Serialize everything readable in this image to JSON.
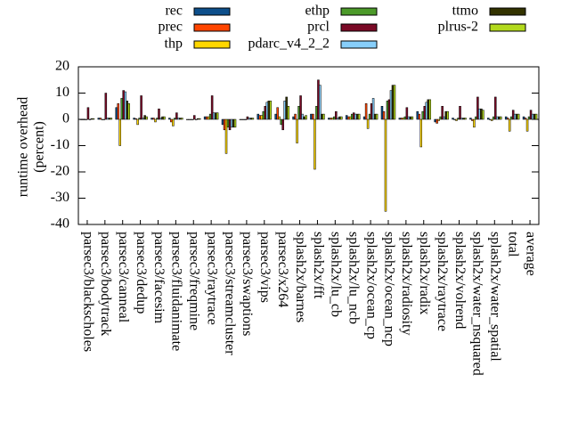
{
  "chart_data": {
    "type": "bar",
    "ylabel": [
      "runtime overhead",
      "(percent)"
    ],
    "categories": [
      "parsec3/blackscholes",
      "parsec3/bodytrack",
      "parsec3/canneal",
      "parsec3/dedup",
      "parsec3/facesim",
      "parsec3/fluidanimate",
      "parsec3/freqmine",
      "parsec3/raytrace",
      "parsec3/streamcluster",
      "parsec3/swaptions",
      "parsec3/vips",
      "parsec3/x264",
      "splash2x/barnes",
      "splash2x/fft",
      "splash2x/lu_cb",
      "splash2x/lu_ncb",
      "splash2x/ocean_cp",
      "splash2x/ocean_ncp",
      "splash2x/radiosity",
      "splash2x/radix",
      "splash2x/raytrace",
      "splash2x/volrend",
      "splash2x/water_nsquared",
      "splash2x/water_spatial",
      "total",
      "average"
    ],
    "series": [
      {
        "name": "rec",
        "color": "#0d4f8b",
        "values": [
          0,
          0.5,
          4.5,
          0.5,
          0.5,
          0.5,
          0,
          1,
          -2,
          0,
          2,
          2,
          1,
          2,
          0.5,
          1.5,
          1,
          5,
          0.5,
          3,
          -1,
          0.5,
          0.5,
          0.5,
          1,
          1
        ]
      },
      {
        "name": "prec",
        "color": "#ff4500",
        "values": [
          0,
          0.5,
          6,
          0.3,
          0.5,
          -1,
          0,
          1,
          -4,
          0,
          1.5,
          4.5,
          2,
          2,
          0.5,
          1,
          6,
          3,
          0.5,
          2,
          -1.5,
          0,
          -0.5,
          0,
          0.5,
          0.5
        ]
      },
      {
        "name": "thp",
        "color": "#ffd700",
        "values": [
          0,
          0,
          -10,
          -2,
          -1,
          -2.5,
          0,
          1,
          -13,
          0,
          1.5,
          1,
          -9,
          -19,
          0.5,
          1,
          -3.5,
          -35,
          0.5,
          -10.5,
          -0.5,
          -0.5,
          -3,
          -0.5,
          -4.5,
          -4.5
        ]
      },
      {
        "name": "ethp",
        "color": "#4c9a2a",
        "values": [
          0,
          0,
          8,
          0.5,
          0.5,
          0.5,
          0,
          2,
          -3,
          0,
          3,
          -2,
          5,
          5,
          1,
          2,
          2,
          7,
          1,
          3,
          1,
          0.5,
          1,
          1,
          1,
          1
        ]
      },
      {
        "name": "prcl",
        "color": "#7a0a26",
        "values": [
          4.5,
          10,
          11,
          9,
          4,
          2.5,
          1.5,
          9,
          -4,
          1,
          5,
          -4,
          9,
          15,
          3,
          2.5,
          6,
          7.5,
          4.5,
          5,
          5,
          5,
          8.5,
          8.5,
          3.5,
          3.5
        ]
      },
      {
        "name": "pdarc_v4_2_2",
        "color": "#87cefa",
        "values": [
          0,
          0.5,
          10.5,
          0.5,
          0.5,
          0.5,
          0,
          2.5,
          -3,
          0.5,
          6.5,
          7,
          2,
          13,
          0.5,
          2,
          8,
          11,
          1,
          6.5,
          1,
          0.5,
          4,
          1,
          2,
          2
        ]
      },
      {
        "name": "ttmo",
        "color": "#333300",
        "values": [
          0.3,
          0.5,
          7,
          1.5,
          1,
          0.5,
          0.3,
          2.5,
          -3,
          0.5,
          7,
          8.5,
          1,
          2,
          1,
          2,
          2,
          13,
          1,
          7.5,
          3,
          0.5,
          4,
          1,
          2,
          2
        ]
      },
      {
        "name": "plrus-2",
        "color": "#b2d91c",
        "values": [
          0.3,
          0.5,
          6,
          1,
          1,
          0.5,
          0.3,
          2.5,
          -3,
          0.5,
          7,
          5,
          1.5,
          2,
          1,
          2,
          2,
          13,
          1,
          7.5,
          3,
          0.5,
          3.5,
          1,
          2,
          2
        ]
      }
    ],
    "ylim": [
      -40,
      20
    ],
    "yticks": [
      -40,
      -30,
      -20,
      -10,
      0,
      10,
      20
    ]
  }
}
